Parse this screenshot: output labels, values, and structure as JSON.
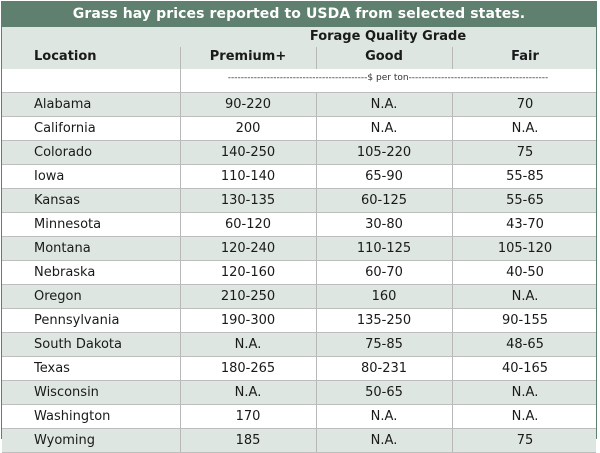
{
  "title": "Grass hay prices reported to USDA from selected states.",
  "header": {
    "group_label": "Forage Quality Grade",
    "location_label": "Location",
    "premium_label": "Premium+",
    "good_label": "Good",
    "fair_label": "Fair"
  },
  "units_label": "-------------------------------------------$ per ton-------------------------------------------",
  "colors": {
    "title_bar": "#5f7f6f",
    "shaded_row": "#dde6e0",
    "plain_row": "#ffffff"
  },
  "rows": [
    {
      "location": "Alabama",
      "premium": "90-220",
      "good": "N.A.",
      "fair": "70"
    },
    {
      "location": "California",
      "premium": "200",
      "good": "N.A.",
      "fair": "N.A."
    },
    {
      "location": "Colorado",
      "premium": "140-250",
      "good": "105-220",
      "fair": "75"
    },
    {
      "location": "Iowa",
      "premium": "110-140",
      "good": "65-90",
      "fair": "55-85"
    },
    {
      "location": "Kansas",
      "premium": "130-135",
      "good": "60-125",
      "fair": "55-65"
    },
    {
      "location": "Minnesota",
      "premium": "60-120",
      "good": "30-80",
      "fair": "43-70"
    },
    {
      "location": "Montana",
      "premium": "120-240",
      "good": "110-125",
      "fair": "105-120"
    },
    {
      "location": "Nebraska",
      "premium": "120-160",
      "good": "60-70",
      "fair": "40-50"
    },
    {
      "location": "Oregon",
      "premium": "210-250",
      "good": "160",
      "fair": "N.A."
    },
    {
      "location": "Pennsylvania",
      "premium": "190-300",
      "good": "135-250",
      "fair": "90-155"
    },
    {
      "location": "South Dakota",
      "premium": "N.A.",
      "good": "75-85",
      "fair": "48-65"
    },
    {
      "location": "Texas",
      "premium": "180-265",
      "good": "80-231",
      "fair": "40-165"
    },
    {
      "location": "Wisconsin",
      "premium": "N.A.",
      "good": "50-65",
      "fair": "N.A."
    },
    {
      "location": "Washington",
      "premium": "170",
      "good": "N.A.",
      "fair": "N.A."
    },
    {
      "location": "Wyoming",
      "premium": "185",
      "good": "N.A.",
      "fair": "75"
    }
  ]
}
